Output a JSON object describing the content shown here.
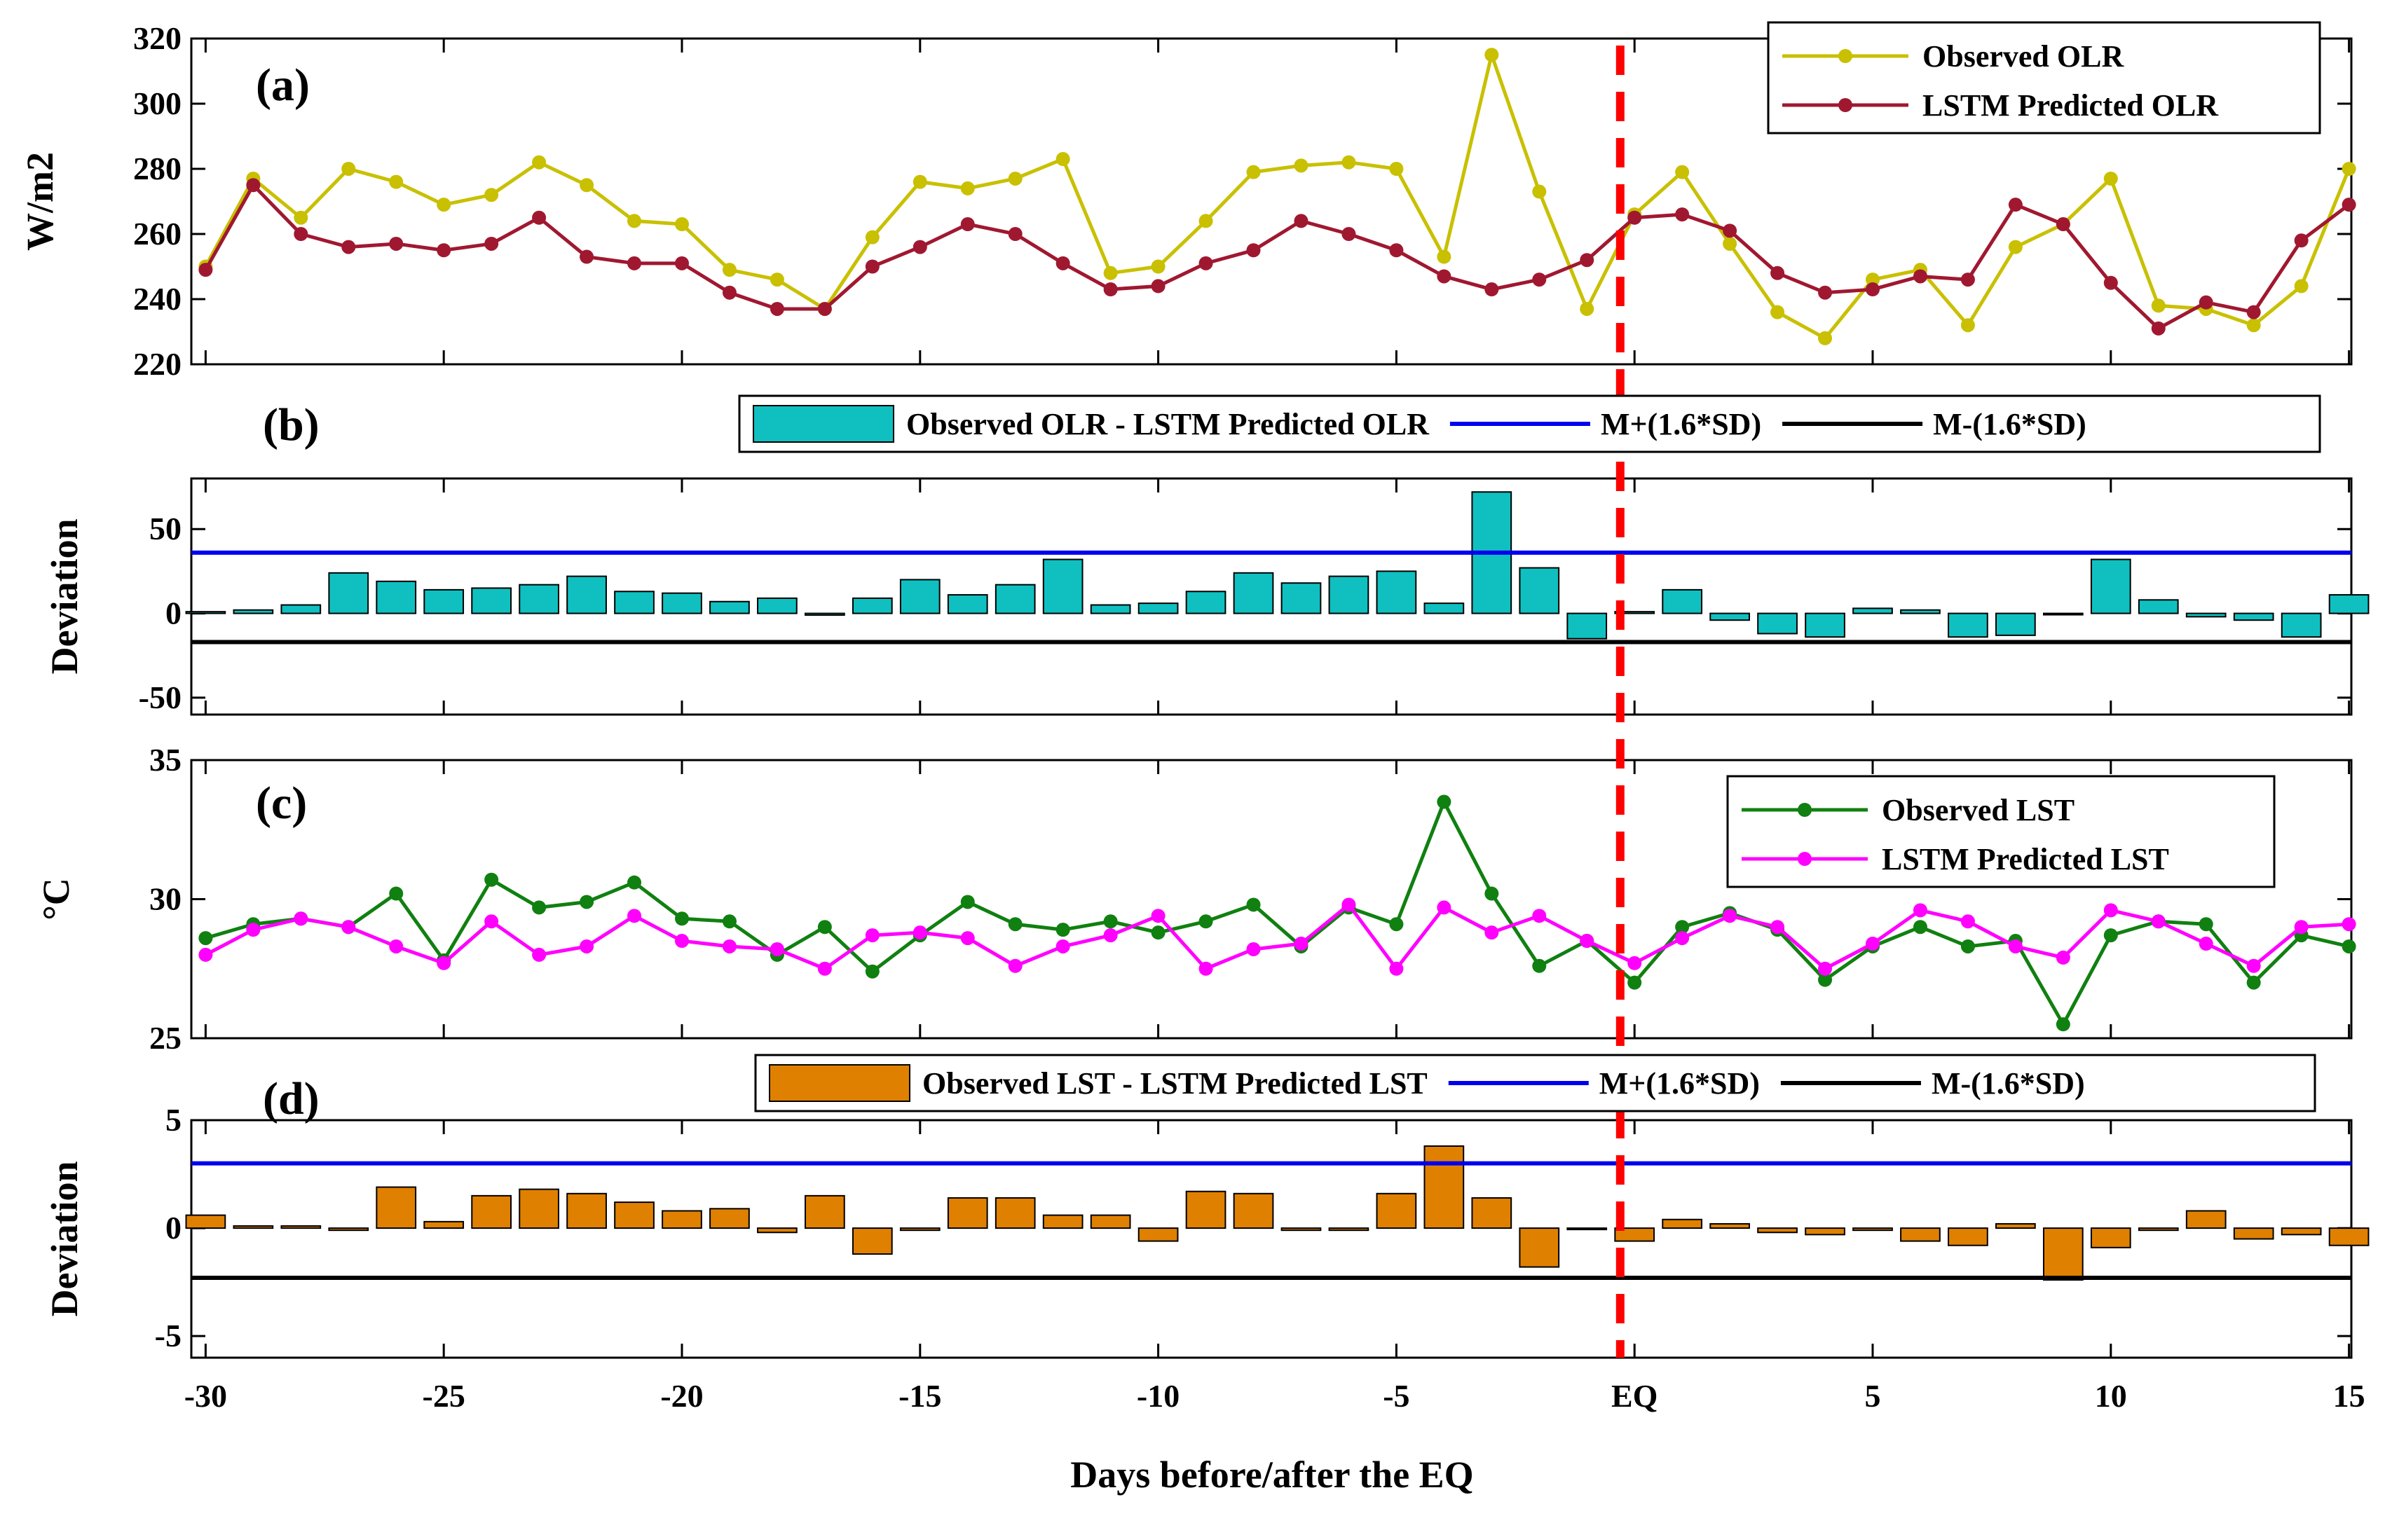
{
  "figure": {
    "xlabel": "Days before/after the EQ",
    "eq_label": "EQ",
    "x_ticks": [
      "-30",
      "-25",
      "-20",
      "-15",
      "-10",
      "-5",
      "EQ",
      "5",
      "10",
      "15"
    ],
    "x_tick_values": [
      -30,
      -25,
      -20,
      -15,
      -10,
      -5,
      0,
      5,
      10,
      15
    ],
    "colors": {
      "observed_olr": "#c8c000",
      "predicted_olr": "#a01830",
      "olr_dev_bar": "#10c0c0",
      "observed_lst": "#108010",
      "predicted_lst": "#ff00ff",
      "lst_dev_bar": "#e08000",
      "upper_threshold": "#0000ee",
      "lower_threshold": "#000000",
      "eq_line": "#ff0000"
    }
  },
  "chart_data": [
    {
      "panel": "(a)",
      "type": "line",
      "ylabel": "W/m2",
      "ylim": [
        220,
        320
      ],
      "yticks": [
        220,
        240,
        260,
        280,
        300,
        320
      ],
      "x": [
        -30,
        -29,
        -28,
        -27,
        -26,
        -25,
        -24,
        -23,
        -22,
        -21,
        -20,
        -19,
        -18,
        -17,
        -16,
        -15,
        -14,
        -13,
        -12,
        -11,
        -10,
        -9,
        -8,
        -7,
        -6,
        -5,
        -4,
        -3,
        -2,
        -1,
        0,
        1,
        2,
        3,
        4,
        5,
        6,
        7,
        8,
        9,
        10,
        11,
        12,
        13,
        14,
        15
      ],
      "series": [
        {
          "name": "Observed OLR",
          "color": "#c8c000",
          "values": [
            250,
            277,
            265,
            280,
            276,
            269,
            272,
            282,
            275,
            264,
            263,
            249,
            246,
            237,
            259,
            276,
            274,
            277,
            283,
            248,
            250,
            264,
            279,
            281,
            282,
            280,
            253,
            315,
            273,
            237,
            266,
            279,
            257,
            236,
            228,
            246,
            249,
            232,
            256,
            263,
            277,
            238,
            237,
            232,
            244,
            280
          ]
        },
        {
          "name": "LSTM Predicted OLR",
          "color": "#a01830",
          "values": [
            249,
            275,
            260,
            256,
            257,
            255,
            257,
            265,
            253,
            251,
            251,
            242,
            237,
            237,
            250,
            256,
            263,
            260,
            251,
            243,
            244,
            251,
            255,
            264,
            260,
            255,
            247,
            243,
            246,
            252,
            265,
            266,
            261,
            248,
            242,
            243,
            247,
            246,
            269,
            263,
            245,
            231,
            239,
            236,
            258,
            269
          ]
        }
      ]
    },
    {
      "panel": "(b)",
      "type": "bar",
      "ylabel": "Deviation",
      "ylim": [
        -60,
        80
      ],
      "yticks": [
        -50,
        0,
        50
      ],
      "x": [
        -30,
        -29,
        -28,
        -27,
        -26,
        -25,
        -24,
        -23,
        -22,
        -21,
        -20,
        -19,
        -18,
        -17,
        -16,
        -15,
        -14,
        -13,
        -12,
        -11,
        -10,
        -9,
        -8,
        -7,
        -6,
        -5,
        -4,
        -3,
        -2,
        -1,
        0,
        1,
        2,
        3,
        4,
        5,
        6,
        7,
        8,
        9,
        10,
        11,
        12,
        13,
        14,
        15
      ],
      "series": [
        {
          "name": "Observed OLR - LSTM Predicted OLR",
          "color": "#10c0c0",
          "values": [
            1,
            2,
            5,
            24,
            19,
            14,
            15,
            17,
            22,
            13,
            12,
            7,
            9,
            -1,
            9,
            20,
            11,
            17,
            32,
            5,
            6,
            13,
            24,
            18,
            22,
            25,
            6,
            72,
            27,
            -15,
            1,
            14,
            -4,
            -12,
            -14,
            3,
            2,
            -14,
            -13,
            0,
            32,
            8,
            -2,
            -4,
            -14,
            11
          ]
        }
      ],
      "thresholds": [
        {
          "name": "M+(1.6*SD)",
          "value": 36,
          "color": "#0000ee"
        },
        {
          "name": "M-(1.6*SD)",
          "value": -17,
          "color": "#000000"
        }
      ]
    },
    {
      "panel": "(c)",
      "type": "line",
      "ylabel": "°C",
      "ylim": [
        25,
        35
      ],
      "yticks": [
        25,
        30,
        35
      ],
      "x": [
        -30,
        -29,
        -28,
        -27,
        -26,
        -25,
        -24,
        -23,
        -22,
        -21,
        -20,
        -19,
        -18,
        -17,
        -16,
        -15,
        -14,
        -13,
        -12,
        -11,
        -10,
        -9,
        -8,
        -7,
        -6,
        -5,
        -4,
        -3,
        -2,
        -1,
        0,
        1,
        2,
        3,
        4,
        5,
        6,
        7,
        8,
        9,
        10,
        11,
        12,
        13,
        14,
        15
      ],
      "series": [
        {
          "name": "Observed LST",
          "color": "#108010",
          "values": [
            28.6,
            29.1,
            29.3,
            29.0,
            30.2,
            27.8,
            30.7,
            29.7,
            29.9,
            30.6,
            29.3,
            29.2,
            28.0,
            29.0,
            27.4,
            28.7,
            29.9,
            29.1,
            28.9,
            29.2,
            28.8,
            29.2,
            29.8,
            28.3,
            29.7,
            29.1,
            33.5,
            30.2,
            27.6,
            28.5,
            27.0,
            29.0,
            29.5,
            28.9,
            27.1,
            28.3,
            29.0,
            28.3,
            28.5,
            25.5,
            28.7,
            29.2,
            29.1,
            27.0,
            28.7,
            28.3
          ]
        },
        {
          "name": "LSTM Predicted LST",
          "color": "#ff00ff",
          "values": [
            28.0,
            28.9,
            29.3,
            29.0,
            28.3,
            27.7,
            29.2,
            28.0,
            28.3,
            29.4,
            28.5,
            28.3,
            28.2,
            27.5,
            28.7,
            28.8,
            28.6,
            27.6,
            28.3,
            28.7,
            29.4,
            27.5,
            28.2,
            28.4,
            29.8,
            27.5,
            29.7,
            28.8,
            29.4,
            28.5,
            27.7,
            28.6,
            29.4,
            29.0,
            27.5,
            28.4,
            29.6,
            29.2,
            28.3,
            27.9,
            29.6,
            29.2,
            28.4,
            27.6,
            29.0,
            29.1
          ]
        }
      ]
    },
    {
      "panel": "(d)",
      "type": "bar",
      "ylabel": "Deviation",
      "ylim": [
        -6,
        5
      ],
      "yticks": [
        -5,
        0,
        5
      ],
      "x": [
        -30,
        -29,
        -28,
        -27,
        -26,
        -25,
        -24,
        -23,
        -22,
        -21,
        -20,
        -19,
        -18,
        -17,
        -16,
        -15,
        -14,
        -13,
        -12,
        -11,
        -10,
        -9,
        -8,
        -7,
        -6,
        -5,
        -4,
        -3,
        -2,
        -1,
        0,
        1,
        2,
        3,
        4,
        5,
        6,
        7,
        8,
        9,
        10,
        11,
        12,
        13,
        14,
        15
      ],
      "series": [
        {
          "name": "Observed LST - LSTM Predicted LST",
          "color": "#e08000",
          "values": [
            0.6,
            0.1,
            0.1,
            -0.1,
            1.9,
            0.3,
            1.5,
            1.8,
            1.6,
            1.2,
            0.8,
            0.9,
            -0.2,
            1.5,
            -1.2,
            -0.1,
            1.4,
            1.4,
            0.6,
            0.6,
            -0.6,
            1.7,
            1.6,
            -0.1,
            -0.1,
            1.6,
            3.8,
            1.4,
            -1.8,
            0.0,
            -0.6,
            0.4,
            0.2,
            -0.2,
            -0.3,
            -0.1,
            -0.6,
            -0.8,
            0.2,
            -2.4,
            -0.9,
            -0.1,
            0.8,
            -0.5,
            -0.3,
            -0.8
          ]
        }
      ],
      "thresholds": [
        {
          "name": "M+(1.6*SD)",
          "value": 3.0,
          "color": "#0000ee"
        },
        {
          "name": "M-(1.6*SD)",
          "value": -2.3,
          "color": "#000000"
        }
      ]
    }
  ]
}
